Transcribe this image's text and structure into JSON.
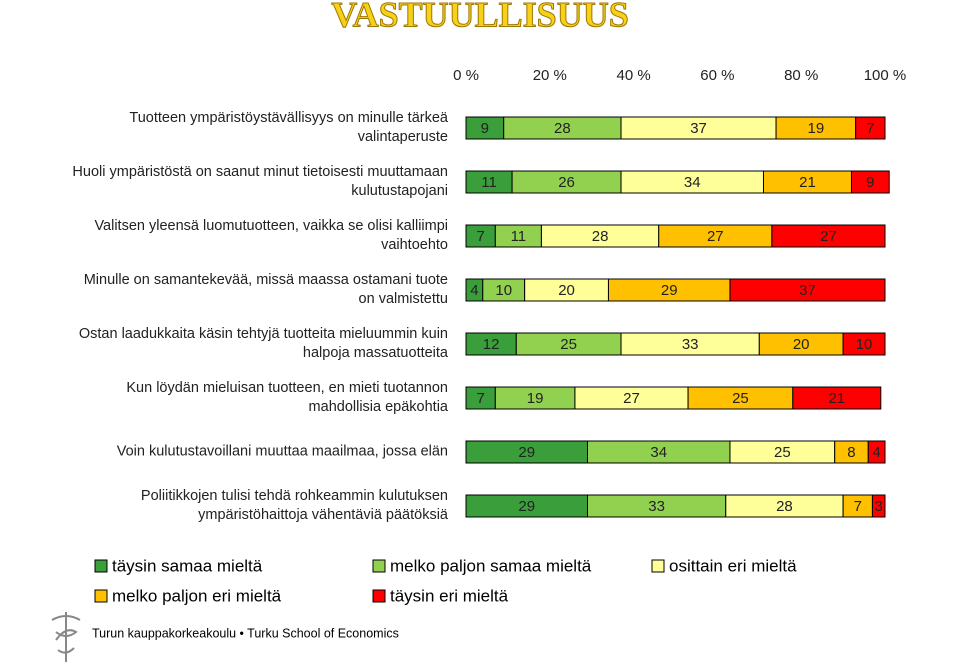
{
  "chart_data": {
    "type": "stacked-bar-horizontal",
    "title": "VASTUULLISUUS",
    "categories": [
      "Tuotteen ympäristöystävällisyys on minulle tärkeä valintaperuste",
      "Huoli ympäristöstä on saanut minut tietoisesti muuttamaan kulutustapojani",
      "Valitsen yleensä luomutuotteen, vaikka se olisi kalliimpi vaihtoehto",
      "Minulle on samantekevää, missä maassa ostamani tuote on valmistettu",
      "Ostan laadukkaita käsin tehtyjä tuotteita mieluummin kuin halpoja massatuotteita",
      "Kun löydän mieluisan tuotteen, en mieti tuotannon mahdollisia epäkohtia",
      "Voin kulutustavoillani muuttaa maailmaa, jossa elän",
      "Poliitikkojen tulisi tehdä rohkeammin kulutuksen ympäristöhaittoja vähentäviä päätöksiä"
    ],
    "series": [
      {
        "name": "täysin samaa mieltä",
        "color": "#3a9e3a",
        "values": [
          9,
          11,
          7,
          4,
          12,
          7,
          29,
          29
        ]
      },
      {
        "name": "melko paljon samaa mieltä",
        "color": "#92d050",
        "values": [
          28,
          26,
          11,
          10,
          25,
          19,
          34,
          33
        ]
      },
      {
        "name": "osittain eri mieltä",
        "color": "#ffff99",
        "values": [
          37,
          34,
          28,
          20,
          33,
          27,
          25,
          28
        ]
      },
      {
        "name": "melko paljon eri mieltä",
        "color": "#ffc000",
        "values": [
          19,
          21,
          27,
          29,
          20,
          25,
          8,
          7
        ]
      },
      {
        "name": "täysin eri mieltä",
        "color": "#ff0000",
        "values": [
          7,
          9,
          27,
          37,
          10,
          21,
          4,
          3
        ]
      }
    ],
    "xlim": [
      0,
      100
    ],
    "xticks": [
      {
        "value": 0,
        "label": "0 %"
      },
      {
        "value": 20,
        "label": "20 %"
      },
      {
        "value": 40,
        "label": "40 %"
      },
      {
        "value": 60,
        "label": "60 %"
      },
      {
        "value": 80,
        "label": "80 %"
      },
      {
        "value": 100,
        "label": "100 %"
      }
    ],
    "footer": "Turun kauppakorkeakoulu • Turku School of Economics"
  }
}
